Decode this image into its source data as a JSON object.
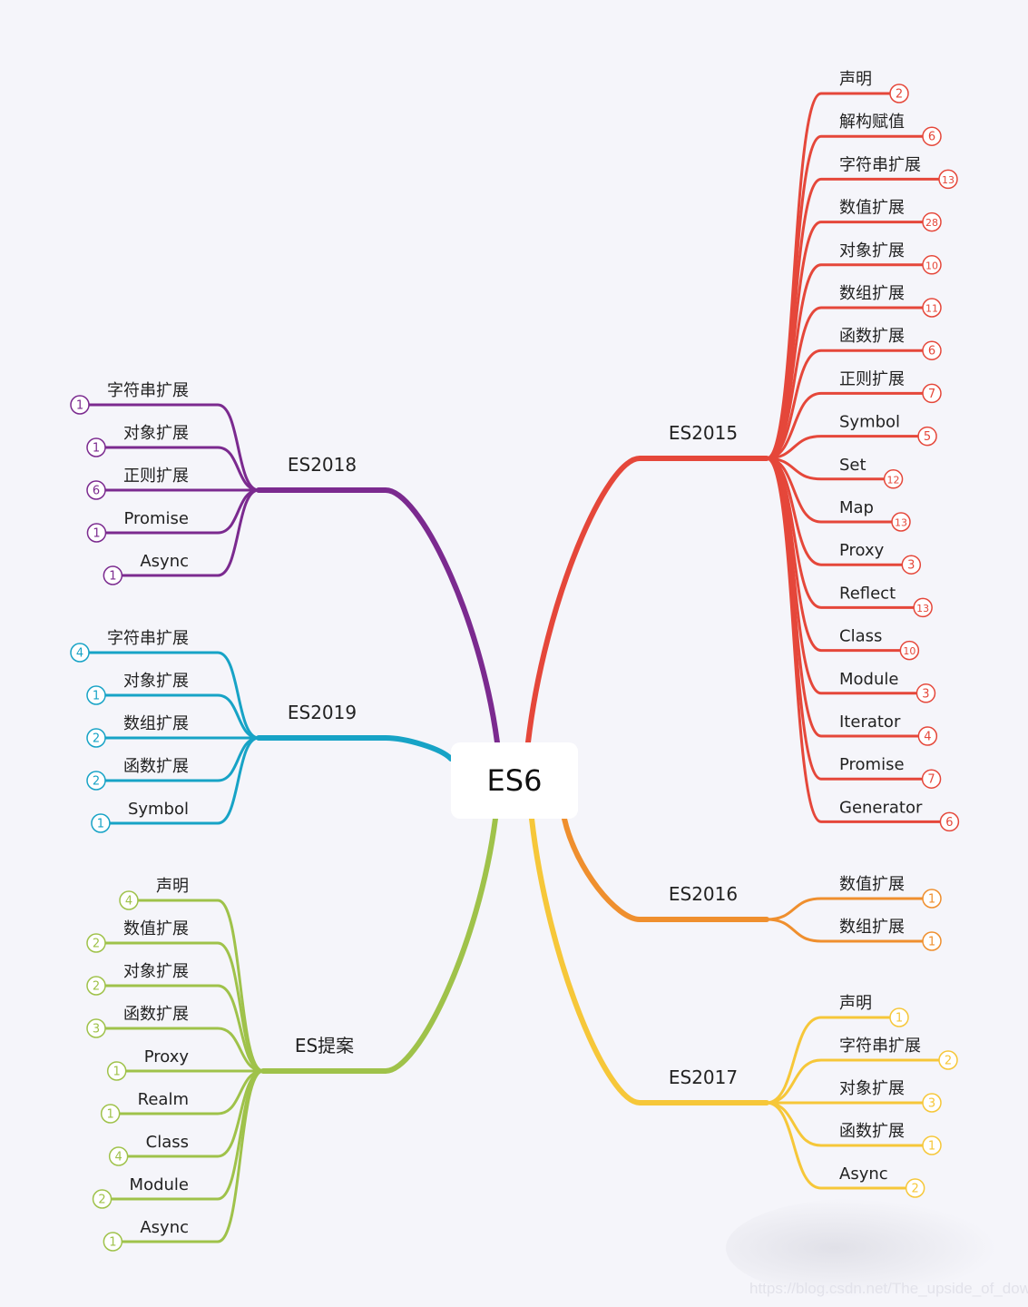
{
  "root": {
    "label": "ES6"
  },
  "branches": [
    {
      "label": "ES2015",
      "color": "#e5473a",
      "children": [
        {
          "label": "声明",
          "count": 2
        },
        {
          "label": "解构赋值",
          "count": 6
        },
        {
          "label": "字符串扩展",
          "count": 13
        },
        {
          "label": "数值扩展",
          "count": 28
        },
        {
          "label": "对象扩展",
          "count": 10
        },
        {
          "label": "数组扩展",
          "count": 11
        },
        {
          "label": "函数扩展",
          "count": 6
        },
        {
          "label": "正则扩展",
          "count": 7
        },
        {
          "label": "Symbol",
          "count": 5
        },
        {
          "label": "Set",
          "count": 12
        },
        {
          "label": "Map",
          "count": 13
        },
        {
          "label": "Proxy",
          "count": 3
        },
        {
          "label": "Reflect",
          "count": 13
        },
        {
          "label": "Class",
          "count": 10
        },
        {
          "label": "Module",
          "count": 3
        },
        {
          "label": "Iterator",
          "count": 4
        },
        {
          "label": "Promise",
          "count": 7
        },
        {
          "label": "Generator",
          "count": 6
        }
      ]
    },
    {
      "label": "ES2016",
      "color": "#ef8f2e",
      "children": [
        {
          "label": "数值扩展",
          "count": 1
        },
        {
          "label": "数组扩展",
          "count": 1
        }
      ]
    },
    {
      "label": "ES2017",
      "color": "#f6c739",
      "children": [
        {
          "label": "声明",
          "count": 1
        },
        {
          "label": "字符串扩展",
          "count": 2
        },
        {
          "label": "对象扩展",
          "count": 3
        },
        {
          "label": "函数扩展",
          "count": 1
        },
        {
          "label": "Async",
          "count": 2
        }
      ]
    },
    {
      "label": "ES2018",
      "color": "#7b2a8f",
      "children": [
        {
          "label": "字符串扩展",
          "count": 1
        },
        {
          "label": "对象扩展",
          "count": 1
        },
        {
          "label": "正则扩展",
          "count": 6
        },
        {
          "label": "Promise",
          "count": 1
        },
        {
          "label": "Async",
          "count": 1
        }
      ]
    },
    {
      "label": "ES2019",
      "color": "#17a3c6",
      "children": [
        {
          "label": "字符串扩展",
          "count": 4
        },
        {
          "label": "对象扩展",
          "count": 1
        },
        {
          "label": "数组扩展",
          "count": 2
        },
        {
          "label": "函数扩展",
          "count": 2
        },
        {
          "label": "Symbol",
          "count": 1
        }
      ]
    },
    {
      "label": "ES提案",
      "color": "#9fc24a",
      "children": [
        {
          "label": "声明",
          "count": 4
        },
        {
          "label": "数值扩展",
          "count": 2
        },
        {
          "label": "对象扩展",
          "count": 2
        },
        {
          "label": "函数扩展",
          "count": 3
        },
        {
          "label": "Proxy",
          "count": 1
        },
        {
          "label": "Realm",
          "count": 1
        },
        {
          "label": "Class",
          "count": 4
        },
        {
          "label": "Module",
          "count": 2
        },
        {
          "label": "Async",
          "count": 1
        }
      ]
    }
  ],
  "watermark": "https://blog.csdn.net/The_upside_of_down"
}
